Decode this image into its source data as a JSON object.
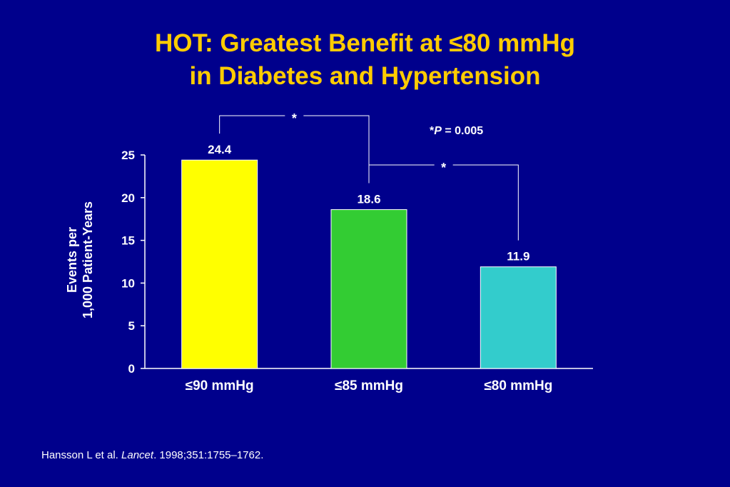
{
  "title": {
    "line1": "HOT: Greatest Benefit at ≤80 mmHg",
    "line2": "in Diabetes and Hypertension"
  },
  "p_note": {
    "prefix": "*",
    "p_symbol": "P",
    "rest": " = 0.005"
  },
  "chart_data": {
    "type": "bar",
    "categories": [
      "≤90 mmHg",
      "≤85 mmHg",
      "≤80 mmHg"
    ],
    "values": [
      24.4,
      18.6,
      11.9
    ],
    "data_labels": [
      "24.4",
      "18.6",
      "11.9"
    ],
    "colors": [
      "#ffff00",
      "#33cc33",
      "#33cccc"
    ],
    "ylabel_lines": [
      "Events per",
      "1,000 Patient-Years"
    ],
    "ylim": [
      0,
      25
    ],
    "yticks": [
      0,
      5,
      10,
      15,
      20,
      25
    ],
    "grid": false,
    "significance": [
      {
        "from": 0,
        "to": 1,
        "label": "*"
      },
      {
        "from": 1,
        "to": 2,
        "label": "*"
      }
    ]
  },
  "citation": {
    "authors": "Hansson L et al. ",
    "journal": "Lancet",
    "details": ". 1998;351:1755–1762."
  }
}
